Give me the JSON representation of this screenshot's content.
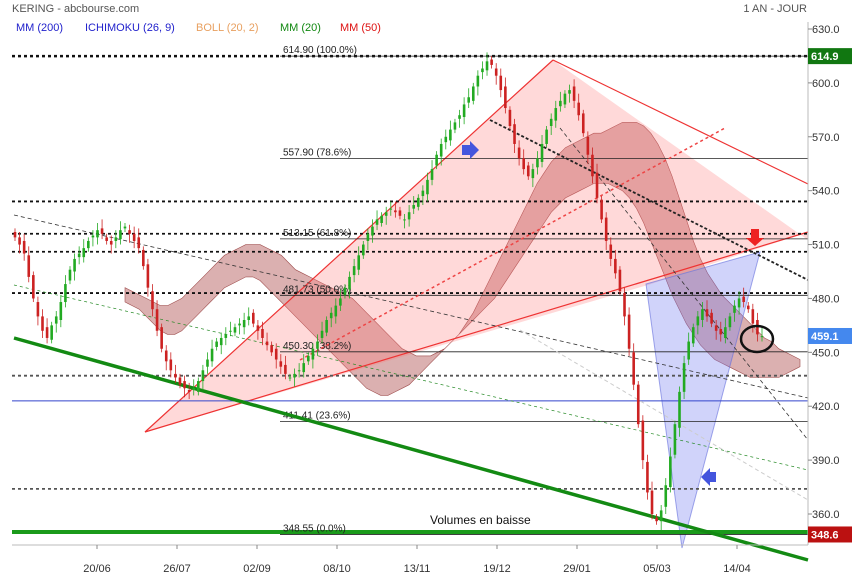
{
  "header": {
    "title": "KERING - abcbourse.com",
    "period": "1 AN - JOUR",
    "indicators": [
      {
        "label": "MM (200)",
        "color": "#2222cc"
      },
      {
        "label": "ICHIMOKU (26, 9)",
        "color": "#2222cc"
      },
      {
        "label": "BOLL (20, 2)",
        "color": "#e8a060"
      },
      {
        "label": "MM (20)",
        "color": "#118811"
      },
      {
        "label": "MM (50)",
        "color": "#dd1111"
      }
    ]
  },
  "chart_data": {
    "type": "candlestick",
    "ylim": [
      348,
      630
    ],
    "y_ticks": [
      360,
      390,
      420,
      450,
      480,
      510,
      540,
      570,
      600,
      630
    ],
    "x_labels": [
      "20/06",
      "26/07",
      "02/09",
      "08/10",
      "13/11",
      "19/12",
      "29/01",
      "05/03",
      "14/04"
    ],
    "last_price": {
      "value": 459.1,
      "label": "459.1",
      "color": "#4488ee"
    },
    "high_badge": {
      "value": 614.9,
      "label": "614.9",
      "color": "#117711"
    },
    "low_badge": {
      "value": 348.6,
      "label": "348.6",
      "color": "#bb1111"
    },
    "fibonacci": [
      {
        "price": 614.9,
        "label": "614.90  (100.0%)"
      },
      {
        "price": 557.9,
        "label": "557.90  (78.6%)"
      },
      {
        "price": 513.15,
        "label": "513.15  (61.8%)"
      },
      {
        "price": 481.73,
        "label": "481.73  (50.0%)"
      },
      {
        "price": 450.3,
        "label": "450.30  (38.2%)"
      },
      {
        "price": 411.41,
        "label": "411.41  (23.6%)"
      },
      {
        "price": 348.55,
        "label": "348.55  (0.0%)"
      }
    ],
    "horizontal_support": [
      614.9,
      534,
      516,
      506,
      483,
      437,
      374,
      350
    ],
    "ma200_level": 423,
    "annotation": "Volumes en baisse",
    "closes": [
      514,
      510,
      505,
      492,
      480,
      470,
      462,
      458,
      465,
      470,
      478,
      488,
      496,
      502,
      505,
      508,
      512,
      515,
      518,
      516,
      512,
      510,
      514,
      518,
      520,
      516,
      512,
      508,
      498,
      486,
      474,
      462,
      452,
      445,
      440,
      436,
      432,
      430,
      428,
      430,
      434,
      440,
      446,
      452,
      456,
      458,
      460,
      462,
      464,
      466,
      468,
      470,
      466,
      462,
      458,
      454,
      450,
      446,
      442,
      438,
      436,
      438,
      440,
      444,
      448,
      452,
      456,
      462,
      468,
      472,
      476,
      480,
      486,
      492,
      498,
      504,
      510,
      516,
      520,
      524,
      526,
      528,
      530,
      528,
      526,
      524,
      528,
      532,
      536,
      540,
      546,
      552,
      560,
      566,
      570,
      574,
      578,
      582,
      588,
      592,
      598,
      604,
      608,
      612,
      610,
      604,
      596,
      586,
      576,
      566,
      558,
      552,
      548,
      552,
      558,
      566,
      574,
      580,
      586,
      590,
      594,
      596,
      590,
      582,
      572,
      560,
      548,
      536,
      524,
      512,
      502,
      494,
      484,
      470,
      452,
      432,
      410,
      390,
      372,
      360,
      356,
      362,
      376,
      392,
      410,
      428,
      444,
      456,
      464,
      470,
      474,
      470,
      466,
      462,
      460,
      464,
      470,
      476,
      480,
      478,
      474,
      466,
      460,
      459
    ],
    "ichimoku_upper": [
      486,
      484,
      482,
      480,
      478,
      476,
      476,
      478,
      480,
      484,
      488,
      492,
      496,
      500,
      504,
      506,
      508,
      510,
      510,
      510,
      508,
      506,
      504,
      500,
      496,
      494,
      492,
      490,
      488,
      486,
      484,
      482,
      480,
      476,
      472,
      468,
      464,
      460,
      456,
      452,
      450,
      448,
      448,
      448,
      450,
      452,
      456,
      460,
      466,
      472,
      480,
      488,
      496,
      504,
      512,
      520,
      528,
      536,
      544,
      550,
      556,
      560,
      564,
      566,
      568,
      570,
      572,
      572,
      574,
      576,
      578,
      578,
      578,
      576,
      572,
      566,
      558,
      548,
      536,
      524,
      512,
      502,
      494,
      488,
      482,
      478,
      474,
      470,
      466,
      462,
      458,
      456,
      452,
      450,
      448,
      446
    ],
    "ichimoku_lower": [
      478,
      476,
      474,
      470,
      466,
      462,
      460,
      460,
      462,
      466,
      470,
      474,
      478,
      482,
      486,
      488,
      490,
      492,
      492,
      490,
      486,
      482,
      478,
      474,
      470,
      466,
      462,
      458,
      454,
      450,
      446,
      442,
      438,
      434,
      430,
      428,
      426,
      426,
      428,
      430,
      432,
      436,
      440,
      444,
      448,
      452,
      456,
      460,
      464,
      468,
      472,
      476,
      480,
      486,
      492,
      498,
      504,
      510,
      516,
      522,
      528,
      532,
      536,
      538,
      540,
      542,
      544,
      544,
      544,
      542,
      540,
      536,
      530,
      522,
      512,
      502,
      492,
      482,
      474,
      466,
      460,
      454,
      450,
      446,
      444,
      442,
      440,
      438,
      436,
      436,
      436,
      436,
      436,
      438,
      440,
      442
    ]
  }
}
